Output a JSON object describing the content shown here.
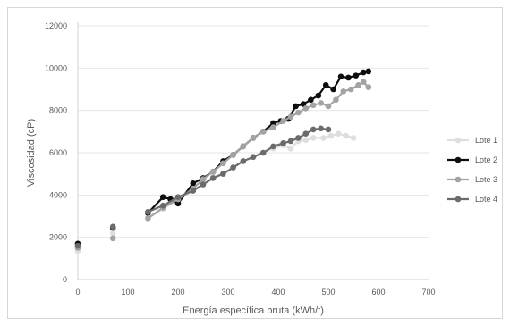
{
  "chart_data": {
    "type": "line",
    "title": "",
    "xlabel": "Energía específica bruta (kWh/t)",
    "ylabel": "Viscosidad (cP)",
    "xlim": [
      0,
      700
    ],
    "ylim": [
      0,
      12000
    ],
    "x_ticks": [
      0,
      100,
      200,
      300,
      400,
      500,
      600,
      700
    ],
    "y_ticks": [
      0,
      2000,
      4000,
      6000,
      8000,
      10000,
      12000
    ],
    "grid": "horizontal",
    "legend_position": "right",
    "series": [
      {
        "name": "Lote 1",
        "color": "#dedede",
        "points": [
          [
            0,
            1350
          ],
          [
            70,
            2200
          ],
          [
            140,
            2900
          ],
          [
            170,
            3350
          ],
          [
            200,
            3800
          ],
          [
            230,
            4200
          ],
          [
            250,
            4500
          ],
          [
            270,
            4850
          ],
          [
            290,
            5000
          ],
          [
            310,
            5300
          ],
          [
            330,
            5600
          ],
          [
            350,
            5800
          ],
          [
            370,
            6000
          ],
          [
            390,
            6200
          ],
          [
            410,
            6350
          ],
          [
            425,
            6200
          ],
          [
            440,
            6550
          ],
          [
            455,
            6600
          ],
          [
            470,
            6700
          ],
          [
            490,
            6700
          ],
          [
            505,
            6800
          ],
          [
            520,
            6900
          ],
          [
            535,
            6800
          ],
          [
            550,
            6700
          ]
        ]
      },
      {
        "name": "Lote 2",
        "color": "#0d0d0d",
        "points": [
          [
            0,
            1700
          ],
          [
            70,
            2450
          ],
          [
            140,
            3150
          ],
          [
            170,
            3900
          ],
          [
            185,
            3800
          ],
          [
            200,
            3600
          ],
          [
            230,
            4550
          ],
          [
            250,
            4800
          ],
          [
            270,
            5100
          ],
          [
            290,
            5600
          ],
          [
            310,
            5900
          ],
          [
            330,
            6300
          ],
          [
            350,
            6700
          ],
          [
            370,
            7000
          ],
          [
            390,
            7400
          ],
          [
            405,
            7500
          ],
          [
            420,
            7600
          ],
          [
            435,
            8200
          ],
          [
            450,
            8300
          ],
          [
            465,
            8500
          ],
          [
            480,
            8700
          ],
          [
            495,
            9200
          ],
          [
            510,
            9000
          ],
          [
            525,
            9600
          ],
          [
            540,
            9550
          ],
          [
            555,
            9650
          ],
          [
            570,
            9800
          ],
          [
            580,
            9850
          ]
        ]
      },
      {
        "name": "Lote 3",
        "color": "#a3a3a3",
        "points": [
          [
            0,
            1500
          ],
          [
            70,
            1950
          ],
          [
            140,
            2900
          ],
          [
            170,
            3400
          ],
          [
            200,
            3800
          ],
          [
            230,
            4300
          ],
          [
            250,
            4750
          ],
          [
            270,
            5100
          ],
          [
            290,
            5500
          ],
          [
            310,
            5900
          ],
          [
            330,
            6300
          ],
          [
            350,
            6700
          ],
          [
            370,
            7000
          ],
          [
            390,
            7200
          ],
          [
            410,
            7500
          ],
          [
            425,
            7700
          ],
          [
            440,
            7900
          ],
          [
            455,
            8100
          ],
          [
            470,
            8250
          ],
          [
            485,
            8350
          ],
          [
            500,
            8200
          ],
          [
            515,
            8500
          ],
          [
            530,
            8900
          ],
          [
            545,
            9000
          ],
          [
            560,
            9200
          ],
          [
            570,
            9350
          ],
          [
            580,
            9100
          ]
        ]
      },
      {
        "name": "Lote 4",
        "color": "#6b6b6b",
        "points": [
          [
            0,
            1600
          ],
          [
            70,
            2500
          ],
          [
            140,
            3200
          ],
          [
            170,
            3500
          ],
          [
            200,
            3900
          ],
          [
            230,
            4200
          ],
          [
            250,
            4500
          ],
          [
            270,
            4800
          ],
          [
            290,
            5000
          ],
          [
            310,
            5300
          ],
          [
            330,
            5600
          ],
          [
            350,
            5800
          ],
          [
            370,
            6000
          ],
          [
            390,
            6300
          ],
          [
            410,
            6450
          ],
          [
            425,
            6550
          ],
          [
            440,
            6700
          ],
          [
            455,
            6900
          ],
          [
            470,
            7100
          ],
          [
            485,
            7150
          ],
          [
            500,
            7100
          ]
        ]
      }
    ]
  }
}
